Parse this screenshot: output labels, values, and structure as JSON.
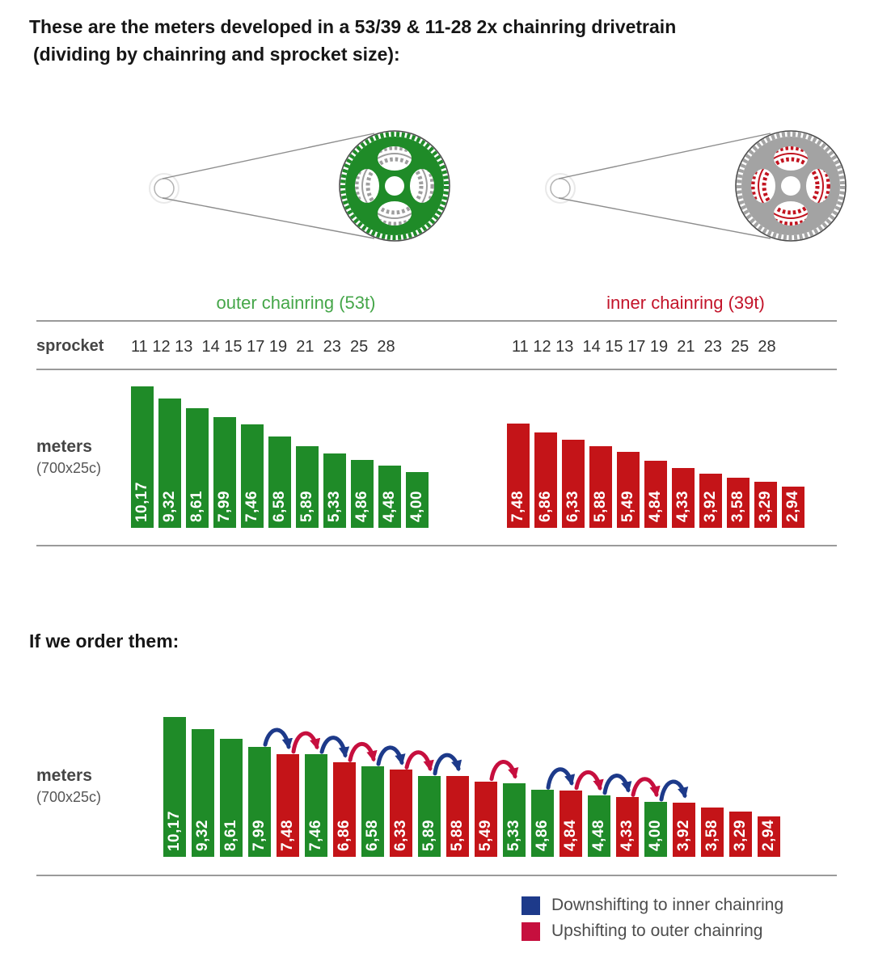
{
  "title": {
    "line1": "These are the meters developed in a 53/39 & 11-28 2x chainring drivetrain",
    "line2": "(dividing by chainring and sprocket size):"
  },
  "section2_heading": "If we order them:",
  "charts_header": {
    "outer_label": "outer chainring (53t)",
    "inner_label": "inner chainring (39t)",
    "sprocket_label": "sprocket",
    "sprockets_display": "11 12 13  14 15 17 19  21  23  25  28"
  },
  "meters_label": {
    "main": "meters",
    "sub": "(700x25c)"
  },
  "drivetrains": {
    "left": {
      "name": "outer chainring drivetrain",
      "ring_color": "#1f8b28",
      "inner_ring_color": "#9e9e9e"
    },
    "right": {
      "name": "inner chainring drivetrain",
      "ring_color": "#a3a3a3",
      "inner_ring_color": "#c2131f"
    }
  },
  "colors": {
    "green_bar": "#1f8b28",
    "red_bar": "#c41418",
    "green_label": "#45a649",
    "red_label": "#c3142a",
    "downshift_blue": "#1d3a8a",
    "upshift_crimson": "#c60f3e",
    "rule_gray": "#9a9a9a"
  },
  "legend": [
    {
      "color": "#1d3a8a",
      "label": "Downshifting to inner chainring"
    },
    {
      "color": "#c60f3e",
      "label": "Upshifting to outer chainring"
    }
  ],
  "chart_data": [
    {
      "type": "bar",
      "title": "outer chainring (53t)",
      "xlabel": "sprocket",
      "ylabel": "meters (700x25c)",
      "categories": [
        11,
        12,
        13,
        14,
        15,
        17,
        19,
        21,
        23,
        25,
        28
      ],
      "values": [
        10.17,
        9.32,
        8.61,
        7.99,
        7.46,
        6.58,
        5.89,
        5.33,
        4.86,
        4.48,
        4.0
      ],
      "value_labels": [
        "10,17",
        "9,32",
        "8,61",
        "7,99",
        "7,46",
        "6,58",
        "5,89",
        "5,33",
        "4,86",
        "4,48",
        "4,00"
      ],
      "bar_color": "#1f8b28",
      "ylim": [
        0,
        10.5
      ],
      "grid": false,
      "legend_position": "none"
    },
    {
      "type": "bar",
      "title": "inner chainring (39t)",
      "xlabel": "sprocket",
      "ylabel": "meters (700x25c)",
      "categories": [
        11,
        12,
        13,
        14,
        15,
        17,
        19,
        21,
        23,
        25,
        28
      ],
      "values": [
        7.48,
        6.86,
        6.33,
        5.88,
        5.49,
        4.84,
        4.33,
        3.92,
        3.58,
        3.29,
        2.94
      ],
      "value_labels": [
        "7,48",
        "6,86",
        "6,33",
        "5,88",
        "5,49",
        "4,84",
        "4,33",
        "3,92",
        "3,58",
        "3,29",
        "2,94"
      ],
      "bar_color": "#c41418",
      "ylim": [
        0,
        10.5
      ],
      "grid": false,
      "legend_position": "none"
    },
    {
      "type": "bar",
      "title": "If we order them (all gears sorted by meters developed)",
      "ylabel": "meters (700x25c)",
      "bars": [
        {
          "label": "10,17",
          "value": 10.17,
          "chainring": "outer"
        },
        {
          "label": "9,32",
          "value": 9.32,
          "chainring": "outer"
        },
        {
          "label": "8,61",
          "value": 8.61,
          "chainring": "outer"
        },
        {
          "label": "7,99",
          "value": 7.99,
          "chainring": "outer"
        },
        {
          "label": "7,48",
          "value": 7.48,
          "chainring": "inner"
        },
        {
          "label": "7,46",
          "value": 7.46,
          "chainring": "outer"
        },
        {
          "label": "6,86",
          "value": 6.86,
          "chainring": "inner"
        },
        {
          "label": "6,58",
          "value": 6.58,
          "chainring": "outer"
        },
        {
          "label": "6,33",
          "value": 6.33,
          "chainring": "inner"
        },
        {
          "label": "5,89",
          "value": 5.89,
          "chainring": "outer"
        },
        {
          "label": "5,88",
          "value": 5.88,
          "chainring": "inner"
        },
        {
          "label": "5,49",
          "value": 5.49,
          "chainring": "inner"
        },
        {
          "label": "5,33",
          "value": 5.33,
          "chainring": "outer"
        },
        {
          "label": "4,86",
          "value": 4.86,
          "chainring": "outer"
        },
        {
          "label": "4,84",
          "value": 4.84,
          "chainring": "inner"
        },
        {
          "label": "4,48",
          "value": 4.48,
          "chainring": "outer"
        },
        {
          "label": "4,33",
          "value": 4.33,
          "chainring": "inner"
        },
        {
          "label": "4,00",
          "value": 4.0,
          "chainring": "outer"
        },
        {
          "label": "3,92",
          "value": 3.92,
          "chainring": "inner"
        },
        {
          "label": "3,58",
          "value": 3.58,
          "chainring": "inner"
        },
        {
          "label": "3,29",
          "value": 3.29,
          "chainring": "inner"
        },
        {
          "label": "2,94",
          "value": 2.94,
          "chainring": "inner"
        }
      ],
      "arrows": [
        {
          "from": 3,
          "to": 4,
          "shift": "downshift"
        },
        {
          "from": 4,
          "to": 5,
          "shift": "upshift"
        },
        {
          "from": 5,
          "to": 6,
          "shift": "downshift"
        },
        {
          "from": 6,
          "to": 7,
          "shift": "upshift"
        },
        {
          "from": 7,
          "to": 8,
          "shift": "downshift"
        },
        {
          "from": 8,
          "to": 9,
          "shift": "upshift"
        },
        {
          "from": 9,
          "to": 10,
          "shift": "downshift"
        },
        {
          "from": 11,
          "to": 12,
          "shift": "upshift"
        },
        {
          "from": 13,
          "to": 14,
          "shift": "downshift"
        },
        {
          "from": 14,
          "to": 15,
          "shift": "upshift"
        },
        {
          "from": 15,
          "to": 16,
          "shift": "downshift"
        },
        {
          "from": 16,
          "to": 17,
          "shift": "upshift"
        },
        {
          "from": 17,
          "to": 18,
          "shift": "downshift"
        }
      ],
      "ylim": [
        0,
        10.5
      ],
      "grid": false,
      "legend_position": "bottom-right"
    }
  ]
}
